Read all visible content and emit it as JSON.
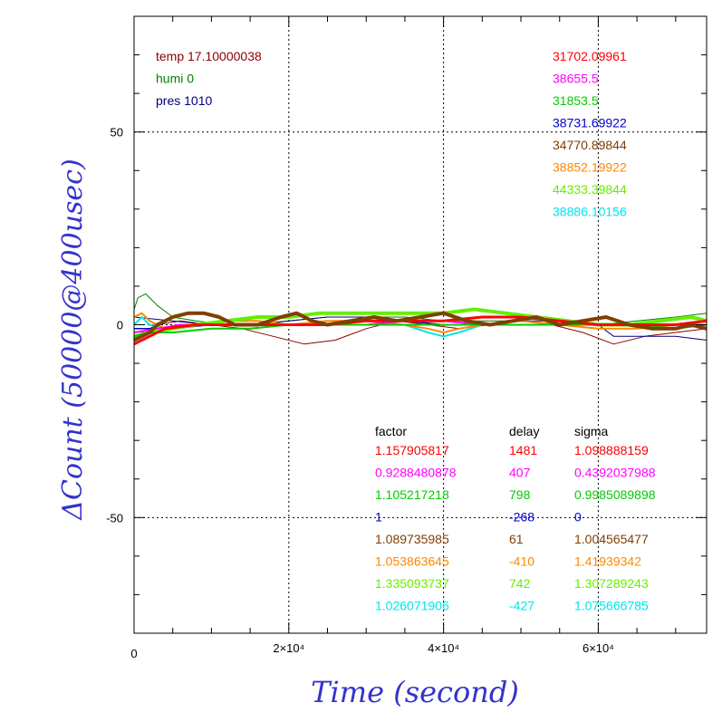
{
  "chart_data": {
    "type": "line",
    "xlabel": "Time (second)",
    "ylabel": "ΔCount (50000@400usec)",
    "xlim": [
      0,
      74000
    ],
    "ylim": [
      -80,
      80
    ],
    "grid": true,
    "x_ticks": [
      {
        "value": 0,
        "label": "0"
      },
      {
        "value": 20000,
        "label": "2×10⁴"
      },
      {
        "value": 40000,
        "label": "4×10⁴"
      },
      {
        "value": 60000,
        "label": "6×10⁴"
      }
    ],
    "y_ticks": [
      {
        "value": 50,
        "label": "50"
      },
      {
        "value": 0,
        "label": "0"
      },
      {
        "value": -50,
        "label": "-50"
      }
    ],
    "env": [
      {
        "text": "temp 17.10000038",
        "color": "#8b0000"
      },
      {
        "text": "humi 0",
        "color": "#008000"
      },
      {
        "text": "pres 1010",
        "color": "#000080"
      }
    ],
    "legend_values": [
      {
        "text": "31702.09961",
        "color": "#ff0000"
      },
      {
        "text": "38655.5",
        "color": "#ff00ff"
      },
      {
        "text": "31853.5",
        "color": "#00cc00"
      },
      {
        "text": "38731.69922",
        "color": "#0000cc"
      },
      {
        "text": "34770.89844",
        "color": "#7f4000"
      },
      {
        "text": "38852.19922",
        "color": "#ff8800"
      },
      {
        "text": "44333.39844",
        "color": "#66ee00"
      },
      {
        "text": "38886.10156",
        "color": "#00e5ee"
      }
    ],
    "table": {
      "headers": [
        "factor",
        "delay",
        "sigma"
      ],
      "rows": [
        {
          "factor": "1.157905817",
          "delay": "1481",
          "sigma": "1.098888159",
          "color": "#ff0000"
        },
        {
          "factor": "0.9288480878",
          "delay": "407",
          "sigma": "0.4392037988",
          "color": "#ff00ff"
        },
        {
          "factor": "1.105217218",
          "delay": "798",
          "sigma": "0.9985089898",
          "color": "#00cc00"
        },
        {
          "factor": "1",
          "delay": "-268",
          "sigma": "0",
          "color": "#0000cc"
        },
        {
          "factor": "1.089735985",
          "delay": "61",
          "sigma": "1.004565477",
          "color": "#7f4000"
        },
        {
          "factor": "1.053863645",
          "delay": "-410",
          "sigma": "1.41939342",
          "color": "#ff8800"
        },
        {
          "factor": "1.335093737",
          "delay": "742",
          "sigma": "1.307289243",
          "color": "#66ee00"
        },
        {
          "factor": "1.026071906",
          "delay": "-427",
          "sigma": "1.075666785",
          "color": "#00e5ee"
        }
      ]
    },
    "series": [
      {
        "color": "#8b0000",
        "width": 1,
        "x": [
          0,
          1000,
          3000,
          6000,
          10000,
          14000,
          18000,
          22000,
          26000,
          30000,
          34000,
          38000,
          42000,
          46000,
          50000,
          54000,
          58000,
          62000,
          66000,
          70000,
          74000
        ],
        "y": [
          -4,
          -2,
          0,
          1,
          0,
          -1,
          -3,
          -5,
          -4,
          -1,
          1,
          0,
          -1,
          0,
          1,
          0,
          -2,
          -5,
          -3,
          -2,
          -1
        ]
      },
      {
        "color": "#008000",
        "width": 1,
        "x": [
          0,
          500,
          1500,
          3000,
          5000,
          8000,
          12000,
          16000,
          20000,
          25000,
          30000,
          35000,
          40000,
          45000,
          50000,
          55000,
          60000,
          65000,
          70000,
          74000
        ],
        "y": [
          4,
          7,
          8,
          5,
          2,
          1,
          0,
          0,
          1,
          2,
          2,
          2,
          1,
          1,
          1,
          0,
          0,
          1,
          2,
          3
        ]
      },
      {
        "color": "#000080",
        "width": 1,
        "x": [
          0,
          5000,
          10000,
          15000,
          20000,
          25000,
          30000,
          35000,
          40000,
          45000,
          50000,
          55000,
          60000,
          62000,
          66000,
          70000,
          74000
        ],
        "y": [
          2,
          1,
          0,
          0,
          1,
          2,
          2,
          1,
          0,
          0,
          1,
          1,
          0,
          -3,
          -3,
          -3,
          -4
        ]
      },
      {
        "color": "#00e5ee",
        "width": 2,
        "x": [
          0,
          1000,
          2000,
          4000,
          8000,
          12000,
          16000,
          20000,
          25000,
          30000,
          35000,
          38000,
          40000,
          42000,
          45000,
          50000,
          55000,
          60000,
          65000,
          70000,
          74000
        ],
        "y": [
          0,
          2,
          0,
          -1,
          0,
          0,
          0,
          0,
          0,
          0,
          0,
          -2,
          -3,
          -2,
          0,
          0,
          0,
          0,
          0,
          0,
          0
        ]
      },
      {
        "color": "#ff8800",
        "width": 2,
        "x": [
          0,
          1000,
          2000,
          4000,
          8000,
          12000,
          16000,
          20000,
          25000,
          30000,
          35000,
          38000,
          40000,
          42000,
          45000,
          50000,
          55000,
          60000,
          65000,
          70000,
          74000
        ],
        "y": [
          2,
          3,
          1,
          -1,
          0,
          1,
          1,
          0,
          1,
          1,
          0,
          -1,
          -2,
          -1,
          0,
          1,
          0,
          -1,
          -1,
          0,
          0
        ]
      },
      {
        "color": "#0000cc",
        "width": 1.5,
        "x": [
          0,
          5000,
          10000,
          15000,
          20000,
          25000,
          30000,
          35000,
          40000,
          45000,
          50000,
          55000,
          60000,
          65000,
          70000,
          74000
        ],
        "y": [
          -1,
          -1,
          0,
          0,
          0,
          0,
          1,
          1,
          0,
          0,
          0,
          0,
          0,
          0,
          0,
          0
        ]
      },
      {
        "color": "#ff00ff",
        "width": 2,
        "x": [
          0,
          3000,
          6000,
          10000,
          15000,
          20000,
          25000,
          30000,
          35000,
          40000,
          45000,
          50000,
          55000,
          60000,
          65000,
          70000,
          74000
        ],
        "y": [
          -2,
          -1,
          0,
          0,
          0,
          0,
          0,
          0,
          1,
          1,
          0,
          0,
          0,
          0,
          0,
          0,
          0
        ]
      },
      {
        "color": "#66ee00",
        "width": 4,
        "x": [
          0,
          2000,
          5000,
          8000,
          12000,
          16000,
          20000,
          24000,
          28000,
          32000,
          36000,
          40000,
          44000,
          48000,
          52000,
          56000,
          60000,
          64000,
          68000,
          72000,
          74000
        ],
        "y": [
          -3,
          -2,
          -1,
          0,
          1,
          2,
          2,
          3,
          3,
          3,
          3,
          3,
          4,
          3,
          2,
          1,
          0,
          0,
          1,
          2,
          1
        ]
      },
      {
        "color": "#00cc00",
        "width": 2,
        "x": [
          0,
          2000,
          5000,
          10000,
          15000,
          20000,
          25000,
          30000,
          35000,
          40000,
          45000,
          50000,
          55000,
          60000,
          65000,
          70000,
          74000
        ],
        "y": [
          -3,
          -2,
          -2,
          -1,
          -1,
          0,
          0,
          0,
          0,
          0,
          0,
          0,
          0,
          0,
          0,
          -1,
          0
        ]
      },
      {
        "color": "#ff0000",
        "width": 3,
        "x": [
          0,
          2000,
          4000,
          8000,
          12000,
          16000,
          20000,
          25000,
          30000,
          35000,
          40000,
          45000,
          50000,
          55000,
          60000,
          65000,
          70000,
          74000
        ],
        "y": [
          -5,
          -3,
          -1,
          0,
          0,
          0,
          0,
          0,
          1,
          1,
          1,
          2,
          2,
          1,
          0,
          0,
          0,
          1
        ]
      },
      {
        "color": "#7f4000",
        "width": 4,
        "x": [
          0,
          1000,
          2000,
          3000,
          5000,
          7000,
          9000,
          11000,
          13000,
          16000,
          19000,
          21000,
          23000,
          25000,
          28000,
          31000,
          34000,
          37000,
          40000,
          43000,
          46000,
          49000,
          52000,
          55000,
          58000,
          61000,
          64000,
          67000,
          70000,
          72000,
          74000
        ],
        "y": [
          -4,
          -3,
          -2,
          0,
          2,
          3,
          3,
          2,
          0,
          0,
          2,
          3,
          1,
          0,
          1,
          2,
          1,
          2,
          3,
          1,
          0,
          1,
          2,
          0,
          1,
          2,
          0,
          -1,
          -1,
          0,
          -1
        ]
      }
    ]
  }
}
